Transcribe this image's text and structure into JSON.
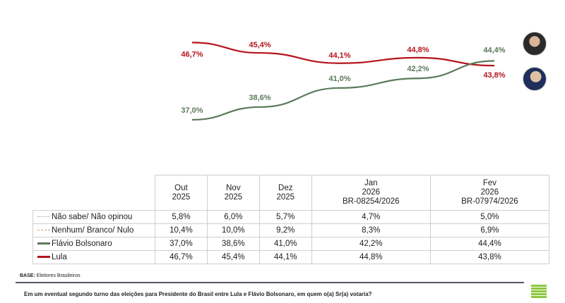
{
  "chart_data": {
    "type": "line",
    "categories": [
      "Out 2025",
      "Nov 2025",
      "Dez 2025",
      "Jan 2026",
      "Fev 2026"
    ],
    "series": [
      {
        "name": "Lula",
        "color": "#b5141c",
        "values": [
          46.7,
          45.4,
          44.1,
          44.8,
          43.8
        ],
        "labels": [
          "46,7%",
          "45,4%",
          "44,1%",
          "44,8%",
          "43,8%"
        ]
      },
      {
        "name": "Flávio Bolsonaro",
        "color": "#5b7a5a",
        "values": [
          37.0,
          38.6,
          41.0,
          42.2,
          44.4
        ],
        "labels": [
          "37,0%",
          "38,6%",
          "41,0%",
          "42,2%",
          "44,4%"
        ]
      }
    ],
    "ylim": [
      36,
      48
    ],
    "grid": false
  },
  "table": {
    "headers": [
      [
        "Out",
        "2025"
      ],
      [
        "Nov",
        "2025"
      ],
      [
        "Dez",
        "2025"
      ],
      [
        "Jan",
        "2026",
        "BR-08254/2026"
      ],
      [
        "Fev",
        "2026",
        "BR-07974/2026"
      ]
    ],
    "rows": [
      {
        "label": "Não sabe/ Não opinou",
        "swatch": "dotted",
        "color": "#aaaaaa",
        "values": [
          "5,8%",
          "6,0%",
          "5,7%",
          "4,7%",
          "5,0%"
        ]
      },
      {
        "label": "Nenhum/ Branco/ Nulo",
        "swatch": "dashed",
        "color": "#c8a06a",
        "values": [
          "10,4%",
          "10,0%",
          "9,2%",
          "8,3%",
          "6,9%"
        ]
      },
      {
        "label": "Flávio Bolsonaro",
        "swatch": "solid",
        "color": "#5b7a5a",
        "values": [
          "37,0%",
          "38,6%",
          "41,0%",
          "42,2%",
          "44,4%"
        ]
      },
      {
        "label": "Lula",
        "swatch": "solid",
        "color": "#b5141c",
        "values": [
          "46,7%",
          "45,4%",
          "44,1%",
          "44,8%",
          "43,8%"
        ]
      }
    ]
  },
  "footer": {
    "base_label": "BASE:",
    "base_text": "Eleitores Brasileiros",
    "question": "Em um eventual segundo turno das eleições para Presidente do Brasil entre Lula e Flávio Bolsonaro, em quem o(a) Sr(a) votaria?"
  }
}
